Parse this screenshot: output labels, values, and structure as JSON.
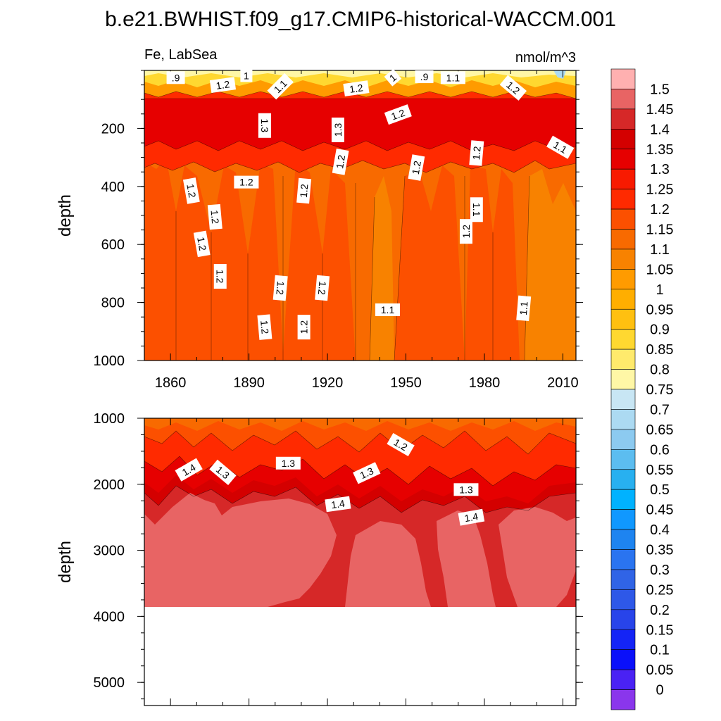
{
  "title": "b.e21.BWHIST.f09_g17.CMIP6-historical-WACCM.001",
  "colors": {
    "frame": "#000000",
    "background": "#ffffff"
  },
  "chart_data": [
    {
      "type": "heatmap",
      "panel": "upper",
      "left_label": "Fe, LabSea",
      "right_label": "nmol/m^3",
      "xlabel": "",
      "ylabel": "depth",
      "xlim": [
        1850,
        2015
      ],
      "ylim": [
        0,
        1000
      ],
      "y_inverted": true,
      "xticks": [
        1860,
        1890,
        1920,
        1950,
        1980,
        2010
      ],
      "xtick_labels": [
        "1860",
        "1890",
        "1920",
        "1950",
        "1980",
        "2010"
      ],
      "yticks": [
        200,
        400,
        600,
        800,
        1000
      ],
      "ytick_labels": [
        "200",
        "400",
        "600",
        "800",
        "1000"
      ],
      "contour_labels": [
        {
          "text": ".9",
          "x": 1862,
          "y": 25,
          "angle": 0
        },
        {
          "text": "1.2",
          "x": 1880,
          "y": 50,
          "angle": -8
        },
        {
          "text": "1",
          "x": 1889,
          "y": 18,
          "angle": 0
        },
        {
          "text": "1.1",
          "x": 1902,
          "y": 55,
          "angle": -45
        },
        {
          "text": "1.2",
          "x": 1931,
          "y": 62,
          "angle": -8
        },
        {
          "text": "1",
          "x": 1945,
          "y": 25,
          "angle": -40
        },
        {
          "text": "1.2",
          "x": 1947,
          "y": 152,
          "angle": -20
        },
        {
          "text": ".9",
          "x": 1957,
          "y": 22,
          "angle": 0
        },
        {
          "text": "1.1",
          "x": 1968,
          "y": 25,
          "angle": 0
        },
        {
          "text": "1.2",
          "x": 1991,
          "y": 60,
          "angle": 40
        },
        {
          "text": "1.3",
          "x": 1896,
          "y": 190,
          "angle": 90
        },
        {
          "text": "1.3",
          "x": 1924,
          "y": 205,
          "angle": -90
        },
        {
          "text": "1.1",
          "x": 2009,
          "y": 265,
          "angle": 30
        },
        {
          "text": "1.2",
          "x": 1925,
          "y": 315,
          "angle": -80
        },
        {
          "text": "1.2",
          "x": 1954,
          "y": 335,
          "angle": -80
        },
        {
          "text": "1.2",
          "x": 1977,
          "y": 285,
          "angle": -85
        },
        {
          "text": "1.2",
          "x": 1868,
          "y": 415,
          "angle": 80
        },
        {
          "text": "1.2",
          "x": 1889,
          "y": 385,
          "angle": 0
        },
        {
          "text": "1.2",
          "x": 1911,
          "y": 415,
          "angle": -85
        },
        {
          "text": "1.1",
          "x": 1977,
          "y": 480,
          "angle": 90
        },
        {
          "text": "1.2",
          "x": 1877,
          "y": 505,
          "angle": 85
        },
        {
          "text": "1.2",
          "x": 1973,
          "y": 555,
          "angle": -90
        },
        {
          "text": "1.2",
          "x": 1872,
          "y": 598,
          "angle": 80
        },
        {
          "text": "1.2",
          "x": 1879,
          "y": 710,
          "angle": 90
        },
        {
          "text": "1.2",
          "x": 1902,
          "y": 750,
          "angle": 95
        },
        {
          "text": "1.2",
          "x": 1918,
          "y": 750,
          "angle": 95
        },
        {
          "text": "1.1",
          "x": 1943,
          "y": 825,
          "angle": 0
        },
        {
          "text": "1.1",
          "x": 1995,
          "y": 820,
          "angle": -85
        },
        {
          "text": "1.2",
          "x": 1896,
          "y": 885,
          "angle": 85
        },
        {
          "text": "1.2",
          "x": 1911,
          "y": 885,
          "angle": -90
        }
      ]
    },
    {
      "type": "heatmap",
      "panel": "lower",
      "xlabel": "",
      "ylabel": "depth",
      "xlim": [
        1850,
        2015
      ],
      "ylim": [
        1000,
        5350
      ],
      "y_inverted": true,
      "seafloor_depth": 3870,
      "yticks": [
        1000,
        2000,
        3000,
        4000,
        5000
      ],
      "ytick_labels": [
        "1000",
        "2000",
        "3000",
        "4000",
        "5000"
      ],
      "contour_labels": [
        {
          "text": "1.4",
          "x": 1867,
          "y": 1780,
          "angle": -30
        },
        {
          "text": "1.3",
          "x": 1880,
          "y": 1820,
          "angle": 40
        },
        {
          "text": "1.3",
          "x": 1905,
          "y": 1680,
          "angle": 0
        },
        {
          "text": "1.2",
          "x": 1948,
          "y": 1400,
          "angle": 30
        },
        {
          "text": "1.3",
          "x": 1935,
          "y": 1830,
          "angle": -25
        },
        {
          "text": "1.4",
          "x": 1924,
          "y": 2300,
          "angle": -8
        },
        {
          "text": "1.3",
          "x": 1973,
          "y": 2080,
          "angle": 0
        },
        {
          "text": "1.4",
          "x": 1975,
          "y": 2500,
          "angle": -10
        }
      ]
    }
  ],
  "colorbar": {
    "levels": [
      "1.5",
      "1.45",
      "1.4",
      "1.35",
      "1.3",
      "1.25",
      "1.2",
      "1.15",
      "1.1",
      "1.05",
      "1",
      "0.95",
      "0.9",
      "0.85",
      "0.8",
      "0.75",
      "0.7",
      "0.65",
      "0.6",
      "0.55",
      "0.5",
      "0.45",
      "0.4",
      "0.35",
      "0.3",
      "0.25",
      "0.2",
      "0.15",
      "0.1",
      "0.05",
      "0"
    ],
    "level_values": [
      1.5,
      1.45,
      1.4,
      1.35,
      1.3,
      1.25,
      1.2,
      1.15,
      1.1,
      1.05,
      1.0,
      0.95,
      0.9,
      0.85,
      0.8,
      0.75,
      0.7,
      0.65,
      0.6,
      0.55,
      0.5,
      0.45,
      0.4,
      0.35,
      0.3,
      0.25,
      0.2,
      0.15,
      0.1,
      0.05,
      0
    ],
    "colors": [
      "#ffb0b0",
      "#e86464",
      "#d62828",
      "#d40000",
      "#e60000",
      "#f81a00",
      "#ff2a00",
      "#fc5000",
      "#f86a00",
      "#f88200",
      "#ff9b00",
      "#ffae00",
      "#ffc010",
      "#ffd830",
      "#ffea6c",
      "#fff7a6",
      "#c8e6f4",
      "#acdaf2",
      "#8ccaf0",
      "#5cbdf0",
      "#28b0f0",
      "#00b2ff",
      "#1098ff",
      "#1e84f0",
      "#2a74f0",
      "#3064e6",
      "#2e58e8",
      "#2844ea",
      "#1424f6",
      "#0a10fa",
      "#4a22f4",
      "#8a36ec"
    ]
  }
}
